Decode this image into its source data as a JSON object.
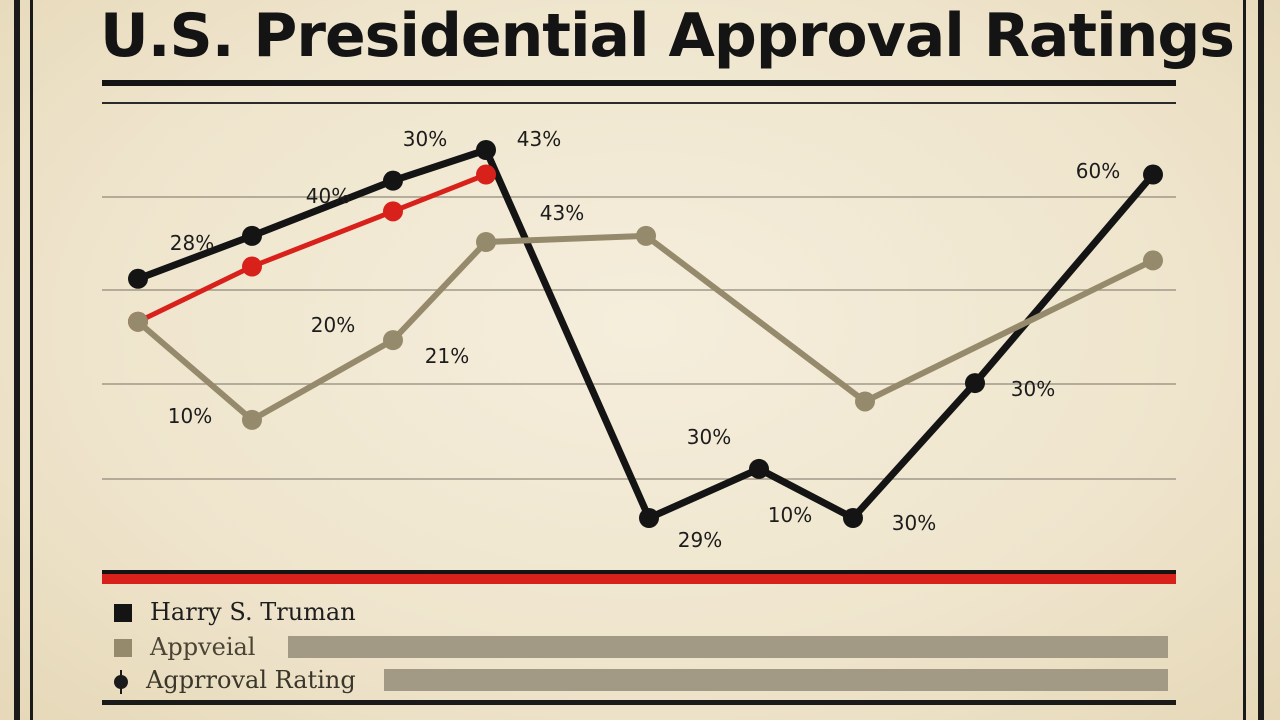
{
  "title": "U.S. Presidential Approval Ratings",
  "colors": {
    "black_series": "#141414",
    "red_series": "#d8211b",
    "tan_series": "#968a6c",
    "red_rule": "#d8211b",
    "legend_bar": "#a29a84"
  },
  "legend": {
    "items": [
      {
        "label": "Harry S. Truman",
        "color": "#141414",
        "marker": "square"
      },
      {
        "label": "Appveial",
        "color": "#968a6c",
        "marker": "square"
      },
      {
        "label": "Agprroval Rating",
        "color": "#141414",
        "marker": "circle"
      }
    ]
  },
  "chart_data": {
    "type": "line",
    "title": "U.S. Presidential Approval Ratings",
    "xlabel": "",
    "ylabel": "",
    "ylim": [
      0,
      70
    ],
    "grid": true,
    "legend_placement": "bottom-left",
    "x": [
      1,
      2,
      3,
      4,
      5,
      6,
      7,
      8,
      9,
      10
    ],
    "series": [
      {
        "name": "Harry S. Truman",
        "color": "#141414",
        "points": [
          {
            "x": 1,
            "y": 49
          },
          {
            "x": 2,
            "y": 56
          },
          {
            "x": 3,
            "y": 65
          },
          {
            "x": 4,
            "y": 70
          },
          {
            "x": 5,
            "y": 10
          },
          {
            "x": 6,
            "y": 18
          },
          {
            "x": 7,
            "y": 10
          },
          {
            "x": 8,
            "y": 32
          },
          {
            "x": 9,
            "y": 66
          }
        ]
      },
      {
        "name": "",
        "color": "#d8211b",
        "points": [
          {
            "x": 1,
            "y": 42
          },
          {
            "x": 2,
            "y": 51
          },
          {
            "x": 3,
            "y": 60
          },
          {
            "x": 4,
            "y": 66
          }
        ]
      },
      {
        "name": "Appveial",
        "color": "#968a6c",
        "points": [
          {
            "x": 1,
            "y": 42
          },
          {
            "x": 2,
            "y": 26
          },
          {
            "x": 3,
            "y": 39
          },
          {
            "x": 4,
            "y": 55
          },
          {
            "x": 5,
            "y": 56
          },
          {
            "x": 6,
            "y": 29
          },
          {
            "x": 7,
            "y": 52
          }
        ]
      }
    ],
    "annotations": [
      {
        "text": "28%",
        "x": 2,
        "y": 56
      },
      {
        "text": "40%",
        "x": 3,
        "y": 65
      },
      {
        "text": "30%",
        "x": 4,
        "y": 70
      },
      {
        "text": "43%",
        "x": 4,
        "y": 70
      },
      {
        "text": "43%",
        "x": 4,
        "y": 66
      },
      {
        "text": "20%",
        "x": 3,
        "y": 39
      },
      {
        "text": "21%",
        "x": 3,
        "y": 39
      },
      {
        "text": "10%",
        "x": 2,
        "y": 26
      },
      {
        "text": "30%",
        "x": 6,
        "y": 18
      },
      {
        "text": "29%",
        "x": 5,
        "y": 10
      },
      {
        "text": "10%",
        "x": 7,
        "y": 10
      },
      {
        "text": "30%",
        "x": 7,
        "y": 10
      },
      {
        "text": "30%",
        "x": 8,
        "y": 32
      },
      {
        "text": "60%",
        "x": 9,
        "y": 66
      }
    ]
  }
}
